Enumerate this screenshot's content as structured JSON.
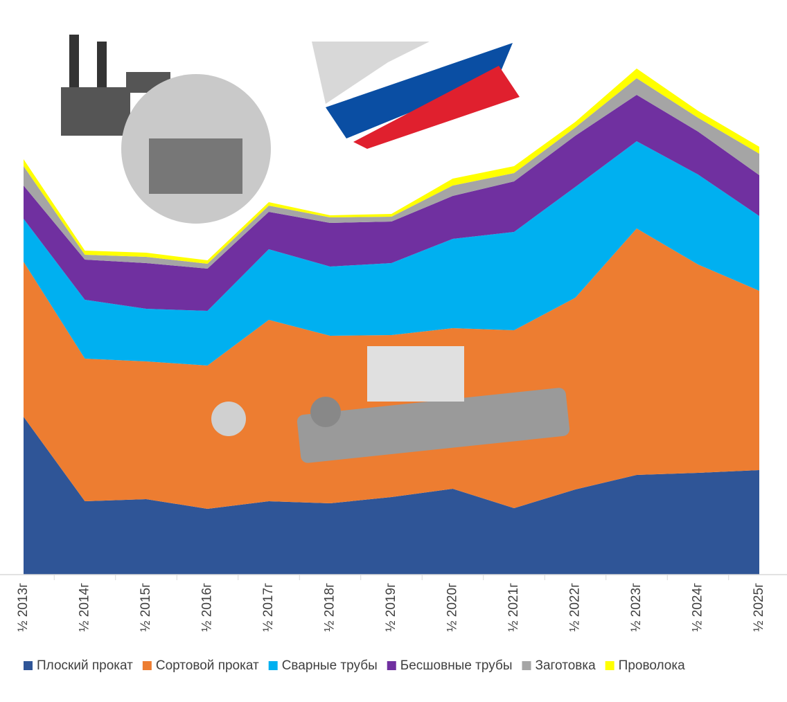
{
  "chart_data": {
    "type": "stacked_area",
    "categories": [
      "½ 2013г",
      "½ 2014г",
      "½ 2015г",
      "½ 2016г",
      "½ 2017г",
      "½ 2018г",
      "½ 2019г",
      "½ 2020г",
      "½ 2021г",
      "½ 2022г",
      "½ 2023г",
      "½ 2024г",
      "½ 2025г"
    ],
    "series": [
      {
        "name": "Плоский прокат",
        "color": "#2f5597",
        "values": [
          228,
          106,
          109,
          95,
          106,
          103,
          112,
          124,
          96,
          123,
          144,
          147,
          151
        ]
      },
      {
        "name": "Сортовой прокат",
        "color": "#ed7d31",
        "values": [
          224,
          206,
          199,
          207,
          262,
          242,
          234,
          232,
          257,
          277,
          356,
          301,
          259
        ]
      },
      {
        "name": "Сварные трубы",
        "color": "#00b0f0",
        "values": [
          62,
          85,
          76,
          79,
          102,
          100,
          104,
          129,
          142,
          160,
          126,
          130,
          108
        ]
      },
      {
        "name": "Бесшовные трубы",
        "color": "#7030a0",
        "values": [
          48,
          58,
          66,
          61,
          54,
          63,
          60,
          62,
          73,
          74,
          67,
          62,
          59
        ]
      },
      {
        "name": "Заготовка",
        "color": "#a5a5a5",
        "values": [
          28,
          7,
          9,
          7,
          9,
          8,
          7,
          15,
          12,
          12,
          24,
          20,
          31
        ]
      },
      {
        "name": "Проволока",
        "color": "#ffff00",
        "values": [
          10,
          6,
          6,
          5,
          5,
          3,
          4,
          10,
          10,
          8,
          14,
          10,
          10
        ]
      }
    ],
    "ylim": [
      0,
      830
    ]
  }
}
